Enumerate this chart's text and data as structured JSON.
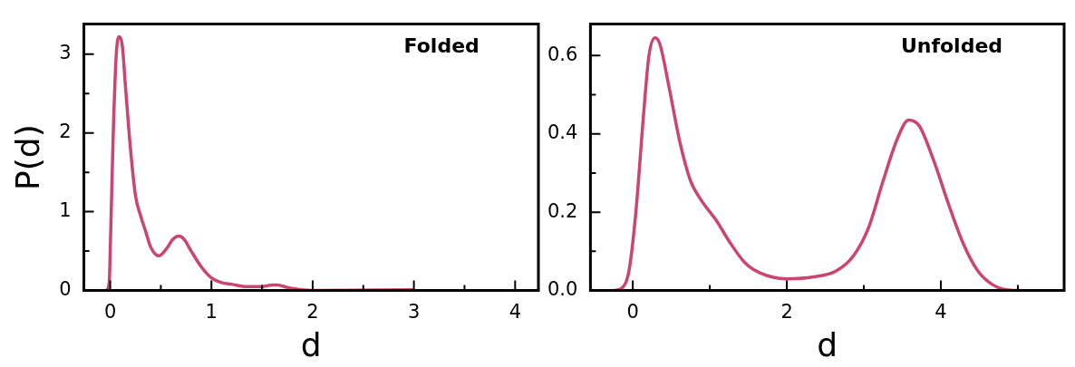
{
  "chart_data": [
    {
      "type": "line",
      "xlabel": "d",
      "ylabel": "P(d)",
      "annotations": [
        "Folded"
      ],
      "x": [
        -0.04,
        -0.01,
        0.0,
        0.03,
        0.06,
        0.09,
        0.12,
        0.15,
        0.2,
        0.25,
        0.3,
        0.35,
        0.4,
        0.48,
        0.55,
        0.62,
        0.68,
        0.73,
        0.8,
        0.9,
        1.0,
        1.1,
        1.2,
        1.35,
        1.5,
        1.6,
        1.65,
        1.75,
        1.9,
        2.1,
        3.0
      ],
      "series": [
        {
          "color": "#cc4470",
          "values": [
            0,
            0.1,
            0.5,
            2.0,
            3.0,
            3.22,
            3.1,
            2.6,
            1.8,
            1.2,
            0.95,
            0.75,
            0.55,
            0.44,
            0.52,
            0.65,
            0.69,
            0.65,
            0.5,
            0.3,
            0.16,
            0.1,
            0.08,
            0.05,
            0.05,
            0.07,
            0.07,
            0.04,
            0.01,
            0,
            0.01
          ]
        }
      ],
      "xlim": [
        -0.26,
        4.23
      ],
      "ylim": [
        0,
        3.38
      ],
      "xticks": [
        0,
        {
          "value": 0.5,
          "label": null
        },
        1,
        {
          "value": 1.5,
          "label": null
        },
        2,
        {
          "value": 2.5,
          "label": null
        },
        3,
        {
          "value": 3.5,
          "label": null
        },
        4
      ],
      "yticks": [
        0,
        {
          "value": 0.5,
          "label": null
        },
        1,
        {
          "value": 1.5,
          "label": null
        },
        2,
        {
          "value": 2.5,
          "label": null
        },
        3
      ]
    },
    {
      "type": "line",
      "xlabel": "d",
      "annotations": [
        "Unfolded"
      ],
      "x": [
        -0.24,
        -0.15,
        -0.05,
        0.04,
        0.14,
        0.21,
        0.29,
        0.35,
        0.47,
        0.61,
        0.75,
        0.89,
        1.08,
        1.27,
        1.46,
        1.65,
        2.0,
        2.35,
        2.64,
        2.87,
        3.06,
        3.25,
        3.44,
        3.58,
        3.72,
        3.91,
        4.1,
        4.29,
        4.48,
        4.67,
        4.85,
        5.04
      ],
      "series": [
        {
          "color": "#cc4470",
          "values": [
            0,
            0.005,
            0.05,
            0.2,
            0.45,
            0.6,
            0.645,
            0.63,
            0.52,
            0.38,
            0.28,
            0.23,
            0.18,
            0.12,
            0.07,
            0.045,
            0.03,
            0.035,
            0.05,
            0.09,
            0.16,
            0.28,
            0.39,
            0.435,
            0.42,
            0.33,
            0.22,
            0.12,
            0.05,
            0.015,
            0.002,
            0
          ]
        }
      ],
      "xlim": [
        -0.55,
        5.6
      ],
      "ylim": [
        0,
        0.68
      ],
      "xticks": [
        0,
        {
          "value": 1,
          "label": null
        },
        2,
        {
          "value": 3,
          "label": null
        },
        4,
        {
          "value": 5,
          "label": null
        }
      ],
      "yticks": [
        "0.0",
        {
          "value": 0.1,
          "label": null
        },
        {
          "value": 0.2,
          "label": "0.2"
        },
        {
          "value": 0.3,
          "label": null
        },
        {
          "value": 0.4,
          "label": "0.4"
        },
        {
          "value": 0.5,
          "label": null
        },
        {
          "value": 0.6,
          "label": "0.6"
        }
      ]
    }
  ]
}
